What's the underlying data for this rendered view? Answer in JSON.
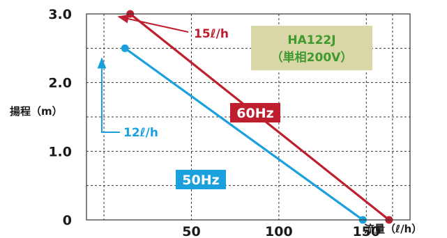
{
  "colors": {
    "hz60": "#bf1e2e",
    "hz50": "#1aa0dc",
    "model_box_bg": "#d9d6a8",
    "model_text": "#3f9a2e"
  },
  "model": {
    "name": "HA122J",
    "spec": "（単相200V）"
  },
  "chart_data": {
    "type": "line",
    "xlabel": "流量（ℓ/h）",
    "ylabel": "揚程（m）",
    "xlim": [
      -10,
      175
    ],
    "ylim": [
      0,
      3
    ],
    "grid": true,
    "x_ticks": [
      {
        "value": 0,
        "label": ""
      },
      {
        "value": 50,
        "label": "50"
      },
      {
        "value": 100,
        "label": "100"
      },
      {
        "value": 150,
        "label": "150"
      }
    ],
    "y_ticks": [
      {
        "value": 0,
        "label": "0"
      },
      {
        "value": 1,
        "label": "1.0"
      },
      {
        "value": 2,
        "label": "2.0"
      },
      {
        "value": 3,
        "label": "3.0"
      }
    ],
    "series": [
      {
        "name": "60Hz",
        "color_key": "hz60",
        "x": [
          15,
          163
        ],
        "y": [
          3.0,
          0
        ],
        "annotation": "15ℓ/h"
      },
      {
        "name": "50Hz",
        "color_key": "hz50",
        "x": [
          12,
          148
        ],
        "y": [
          2.5,
          0
        ],
        "annotation": "12ℓ/h"
      }
    ]
  }
}
